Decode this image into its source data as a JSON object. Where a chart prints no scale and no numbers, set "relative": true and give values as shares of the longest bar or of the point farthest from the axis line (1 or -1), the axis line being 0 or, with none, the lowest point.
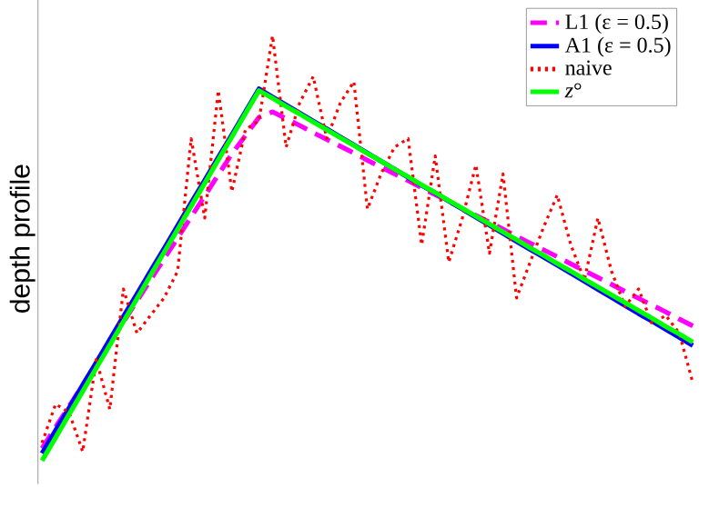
{
  "chart_data": {
    "type": "line",
    "relative": true,
    "ylabel": "depth profile",
    "legend": "top right",
    "categories": [
      null,
      null,
      null,
      null,
      null,
      null,
      null,
      null,
      null,
      null,
      null,
      null,
      null,
      null,
      null,
      null,
      null,
      null,
      null,
      null,
      null,
      null,
      null,
      null,
      null,
      null,
      null,
      null,
      null,
      null,
      null,
      null,
      null,
      null,
      null,
      null,
      null,
      null,
      null,
      null,
      null,
      null,
      null,
      null,
      null,
      null,
      null,
      null,
      null
    ],
    "series": [
      {
        "name": "L1 (ε = 0.5)",
        "color": "#ff00ff",
        "line_style": "dashed",
        "values": [
          0.029,
          0.079,
          0.128,
          0.178,
          0.227,
          0.277,
          0.326,
          0.376,
          0.425,
          0.475,
          0.524,
          0.574,
          0.623,
          0.673,
          0.722,
          0.765,
          0.808,
          0.821,
          0.805,
          0.789,
          0.772,
          0.756,
          0.74,
          0.724,
          0.707,
          0.691,
          0.675,
          0.659,
          0.642,
          0.626,
          0.61,
          0.593,
          0.577,
          0.561,
          0.545,
          0.528,
          0.512,
          0.496,
          0.48,
          0.463,
          0.447,
          0.431,
          0.415,
          0.398,
          0.382,
          0.366,
          0.35,
          0.333,
          0.317
        ]
      },
      {
        "name": "A1 (ε = 0.5)",
        "color": "#0000ff",
        "line_style": "solid",
        "values": [
          0.017,
          0.071,
          0.124,
          0.178,
          0.231,
          0.285,
          0.339,
          0.392,
          0.446,
          0.499,
          0.553,
          0.607,
          0.66,
          0.714,
          0.767,
          0.821,
          0.875,
          0.856,
          0.837,
          0.818,
          0.799,
          0.781,
          0.762,
          0.743,
          0.724,
          0.705,
          0.686,
          0.667,
          0.648,
          0.63,
          0.611,
          0.592,
          0.573,
          0.554,
          0.535,
          0.516,
          0.497,
          0.479,
          0.46,
          0.441,
          0.422,
          0.403,
          0.384,
          0.365,
          0.346,
          0.328,
          0.309,
          0.29,
          0.271
        ]
      },
      {
        "name": "naive",
        "color": "#ff0000",
        "line_style": "dotted",
        "values": [
          0.042,
          0.133,
          0.113,
          0.021,
          0.238,
          0.121,
          0.404,
          0.3,
          0.342,
          0.383,
          0.446,
          0.758,
          0.571,
          0.871,
          0.633,
          0.779,
          0.8,
          1,
          0.738,
          0.842,
          0.904,
          0.758,
          0.842,
          0.892,
          0.592,
          0.675,
          0.738,
          0.758,
          0.508,
          0.717,
          0.467,
          0.571,
          0.696,
          0.488,
          0.675,
          0.383,
          0.467,
          0.55,
          0.625,
          0.508,
          0.425,
          0.571,
          0.446,
          0.363,
          0.404,
          0.321,
          0.342,
          0.3,
          0.183
        ]
      },
      {
        "name": "*z*°",
        "color": "#00ff00",
        "line_style": "solid",
        "values": [
          0,
          0.054,
          0.109,
          0.163,
          0.218,
          0.272,
          0.327,
          0.381,
          0.436,
          0.49,
          0.544,
          0.599,
          0.653,
          0.708,
          0.762,
          0.817,
          0.871,
          0.853,
          0.834,
          0.816,
          0.797,
          0.779,
          0.76,
          0.742,
          0.723,
          0.705,
          0.686,
          0.668,
          0.649,
          0.631,
          0.612,
          0.594,
          0.575,
          0.557,
          0.538,
          0.52,
          0.501,
          0.483,
          0.464,
          0.446,
          0.427,
          0.409,
          0.39,
          0.372,
          0.353,
          0.335,
          0.316,
          0.298,
          0.279
        ]
      }
    ]
  }
}
